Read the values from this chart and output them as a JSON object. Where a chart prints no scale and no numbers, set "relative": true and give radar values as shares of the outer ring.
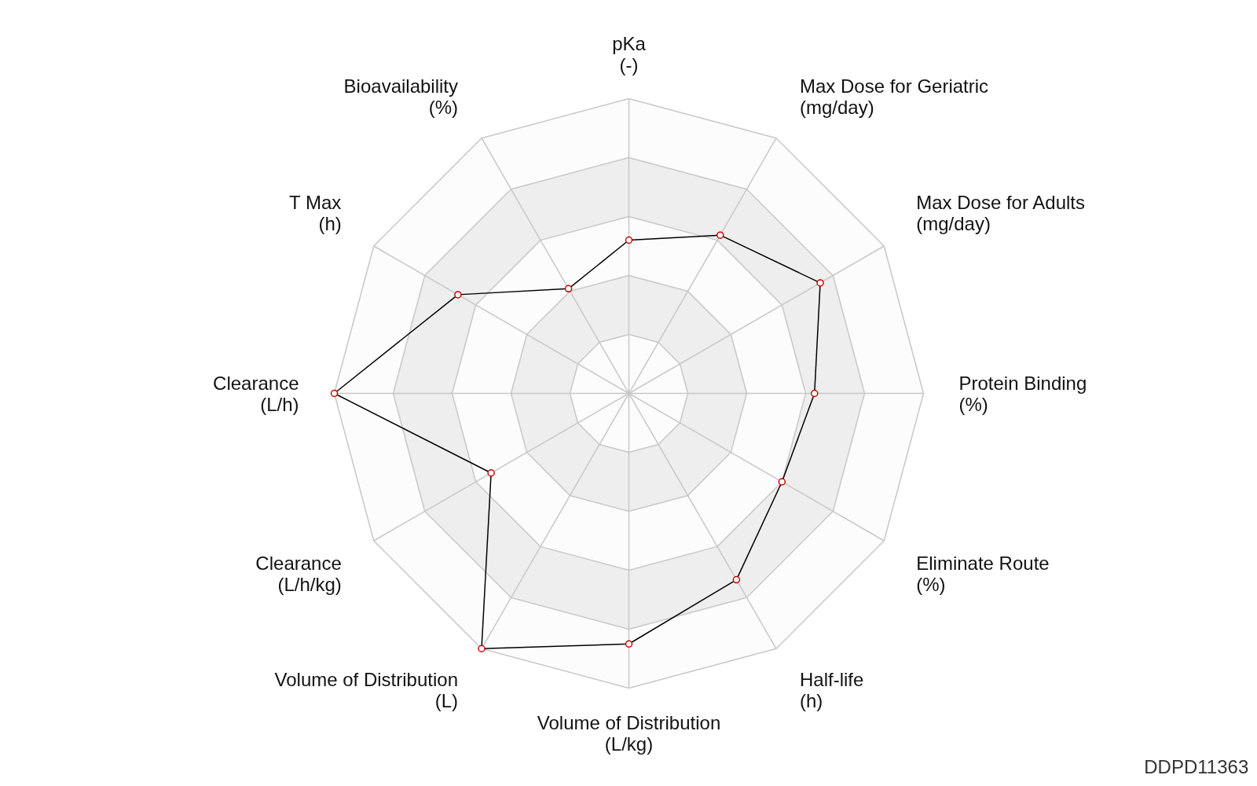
{
  "chart_data": {
    "type": "radar",
    "relative": true,
    "grid": true,
    "marker": "circle",
    "categories": [
      "pKa\n(-)",
      "Max Dose for Geriatric\n(mg/day)",
      "Max Dose for Adults\n(mg/day)",
      "Protein Binding\n(%)",
      "Eliminate Route\n(%)",
      "Half-life\n(h)",
      "Volume of Distribution\n(L/kg)",
      "Volume of Distribution\n(L)",
      "Clearance\n(L/h/kg)",
      "Clearance\n(L/h)",
      "T Max\n(h)",
      "Bioavailability\n(%)"
    ],
    "series": [
      {
        "color": "#000000",
        "values": [
          0.52,
          0.62,
          0.75,
          0.63,
          0.6,
          0.73,
          0.85,
          1.0,
          0.54,
          1.0,
          0.67,
          0.41
        ]
      }
    ],
    "annotations": [
      "DDPD11363"
    ]
  }
}
